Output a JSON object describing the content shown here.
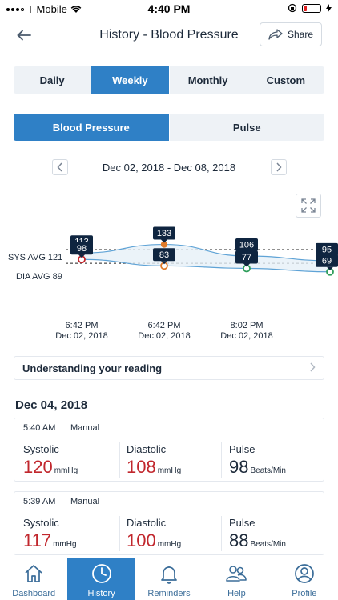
{
  "status_bar": {
    "carrier": "T-Mobile",
    "time": "4:40 PM"
  },
  "header": {
    "title": "History - Blood Pressure",
    "share_label": "Share"
  },
  "period_tabs": [
    {
      "label": "Daily",
      "active": false
    },
    {
      "label": "Weekly",
      "active": true
    },
    {
      "label": "Monthly",
      "active": false
    },
    {
      "label": "Custom",
      "active": false
    }
  ],
  "metric_tabs": [
    {
      "label": "Blood Pressure",
      "active": true
    },
    {
      "label": "Pulse",
      "active": false
    }
  ],
  "date_range": "Dec 02, 2018 - Dec 08, 2018",
  "chart_data": {
    "type": "line",
    "sys_avg_label": "SYS AVG 121",
    "dia_avg_label": "DIA AVG 89",
    "sys_avg": 121,
    "dia_avg": 89,
    "series": [
      {
        "name": "SYS",
        "values": [
          113,
          133,
          106,
          95
        ]
      },
      {
        "name": "DIA",
        "values": [
          98,
          83,
          77,
          69
        ]
      }
    ],
    "point_colors": [
      "#c1272d",
      "#e07b2a",
      "#2f9e5b",
      "#2f9e5b"
    ],
    "x_ticks": [
      {
        "time": "6:42 PM",
        "date": "Dec 02, 2018"
      },
      {
        "time": "6:42 PM",
        "date": "Dec 02, 2018"
      },
      {
        "time": "8:02 PM",
        "date": "Dec 02, 2018"
      }
    ]
  },
  "understanding_label": "Understanding your reading",
  "day_title": "Dec 04, 2018",
  "readings": [
    {
      "time": "5:40 AM",
      "mode": "Manual",
      "systolic_label": "Systolic",
      "systolic": "120",
      "systolic_unit": "mmHg",
      "diastolic_label": "Diastolic",
      "diastolic": "108",
      "diastolic_unit": "mmHg",
      "pulse_label": "Pulse",
      "pulse": "98",
      "pulse_unit": "Beats/Min"
    },
    {
      "time": "5:39 AM",
      "mode": "Manual",
      "systolic_label": "Systolic",
      "systolic": "117",
      "systolic_unit": "mmHg",
      "diastolic_label": "Diastolic",
      "diastolic": "100",
      "diastolic_unit": "mmHg",
      "pulse_label": "Pulse",
      "pulse": "88",
      "pulse_unit": "Beats/Min"
    }
  ],
  "tabbar": [
    {
      "label": "Dashboard",
      "icon": "home-icon",
      "active": false
    },
    {
      "label": "History",
      "icon": "clock-icon",
      "active": true
    },
    {
      "label": "Reminders",
      "icon": "bell-icon",
      "active": false
    },
    {
      "label": "Help",
      "icon": "help-people-icon",
      "active": false
    },
    {
      "label": "Profile",
      "icon": "profile-icon",
      "active": false
    }
  ],
  "colors": {
    "accent": "#2f80c6",
    "red_value": "#c1272d",
    "tooltip": "#0f2540",
    "sys_line": "#5fa3d6",
    "dia_line": "#5fa3d6"
  }
}
